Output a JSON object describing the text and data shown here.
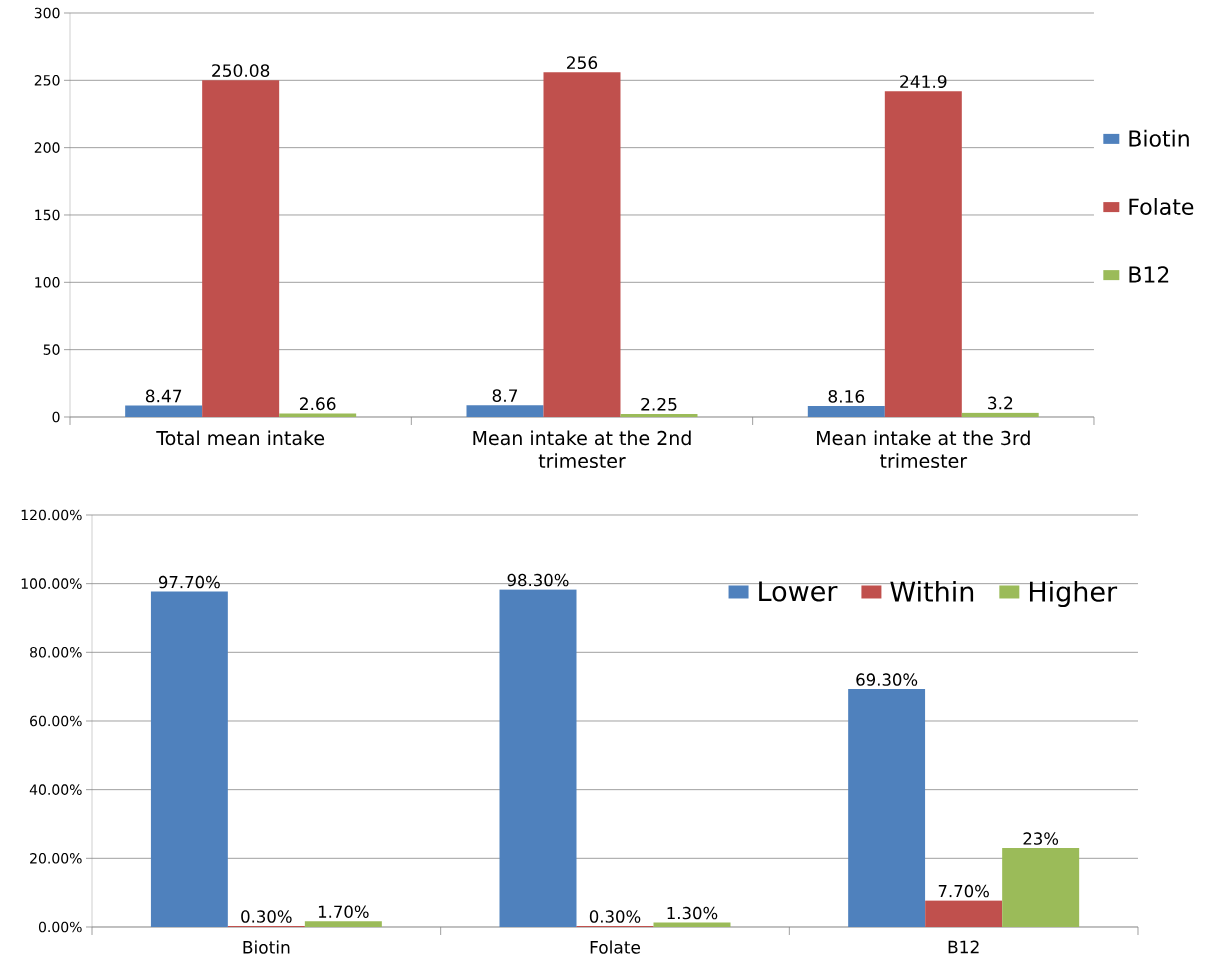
{
  "chart_data": [
    {
      "type": "bar",
      "categories": [
        "Total mean intake",
        "Mean intake at the  2nd trimester",
        "Mean intake at the 3rd trimester"
      ],
      "series": [
        {
          "name": "Biotin",
          "color": "#4f81bd",
          "values": [
            8.47,
            8.7,
            8.16
          ]
        },
        {
          "name": "Folate",
          "color": "#c0504d",
          "values": [
            250.08,
            256,
            241.9
          ]
        },
        {
          "name": "B12",
          "color": "#9bbb59",
          "values": [
            2.66,
            2.25,
            3.2
          ]
        }
      ],
      "ylim": [
        0,
        300
      ],
      "yticks": [
        0,
        50,
        100,
        150,
        200,
        250,
        300
      ],
      "grid": "y",
      "legend": "right",
      "data_labels": true
    },
    {
      "type": "bar",
      "categories": [
        "Biotin",
        "Folate",
        "B12"
      ],
      "series": [
        {
          "name": "Lower",
          "color": "#4f81bd",
          "values": [
            97.7,
            98.3,
            69.3
          ],
          "value_labels": [
            "97.70%",
            "98.30%",
            "69.30%"
          ]
        },
        {
          "name": "Within",
          "color": "#c0504d",
          "values": [
            0.3,
            0.3,
            7.7
          ],
          "value_labels": [
            "0.30%",
            "0.30%",
            "7.70%"
          ]
        },
        {
          "name": "Higher",
          "color": "#9bbb59",
          "values": [
            1.7,
            1.3,
            23
          ],
          "value_labels": [
            "1.70%",
            "1.30%",
            "23%"
          ]
        }
      ],
      "ylim": [
        0,
        120
      ],
      "yticks": [
        {
          "value": 0,
          "label": "0.00%"
        },
        {
          "value": 20,
          "label": "20.00%"
        },
        {
          "value": 40,
          "label": "40.00%"
        },
        {
          "value": 60,
          "label": "60.00%"
        },
        {
          "value": 80,
          "label": "80.00%"
        },
        {
          "value": 100,
          "label": "100.00%"
        },
        {
          "value": 120,
          "label": "120.00%"
        }
      ],
      "grid": "y",
      "legend": "top right"
    }
  ]
}
